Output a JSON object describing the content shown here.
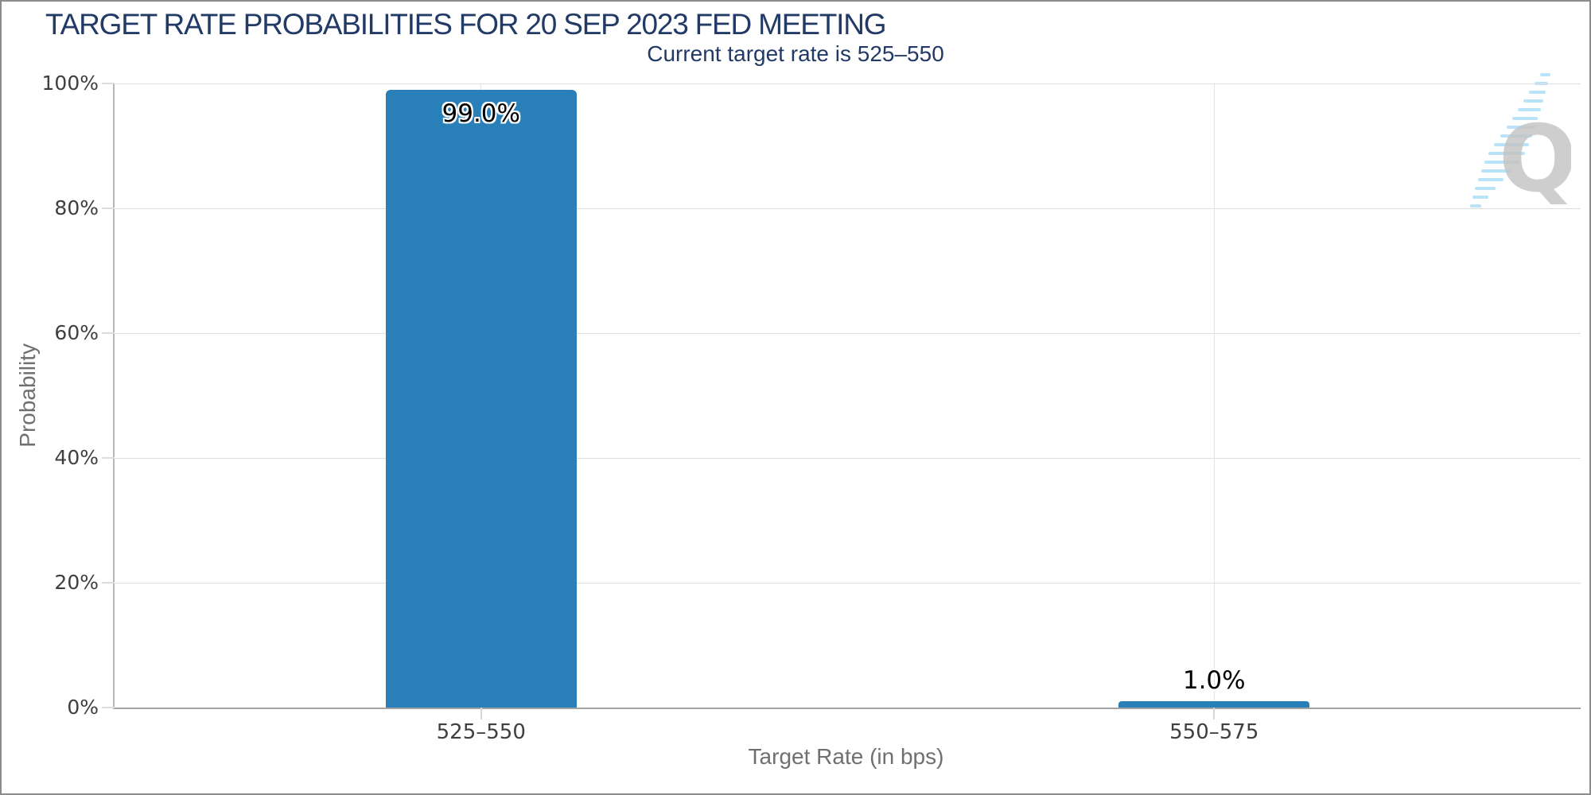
{
  "chart_data": {
    "type": "bar",
    "title": "TARGET RATE PROBABILITIES FOR 20 SEP 2023 FED MEETING",
    "subtitle": "Current target rate is 525–550",
    "categories": [
      "525–550",
      "550–575"
    ],
    "values": [
      99.0,
      1.0
    ],
    "value_labels": [
      "99.0%",
      "1.0%"
    ],
    "xlabel": "Target Rate (in bps)",
    "ylabel": "Probability",
    "ylim": [
      0,
      100
    ],
    "ytick_values": [
      0,
      20,
      40,
      60,
      80,
      100
    ],
    "ytick_labels": [
      "0%",
      "20%",
      "40%",
      "60%",
      "80%",
      "100%"
    ],
    "grid": true,
    "legend": "none",
    "bar_color": "#2980b9",
    "title_color": "#223a66",
    "axis_text_color": "#3f3f3f",
    "axis_title_color": "#6f6f6f"
  },
  "logo": {
    "letter": "Q"
  }
}
